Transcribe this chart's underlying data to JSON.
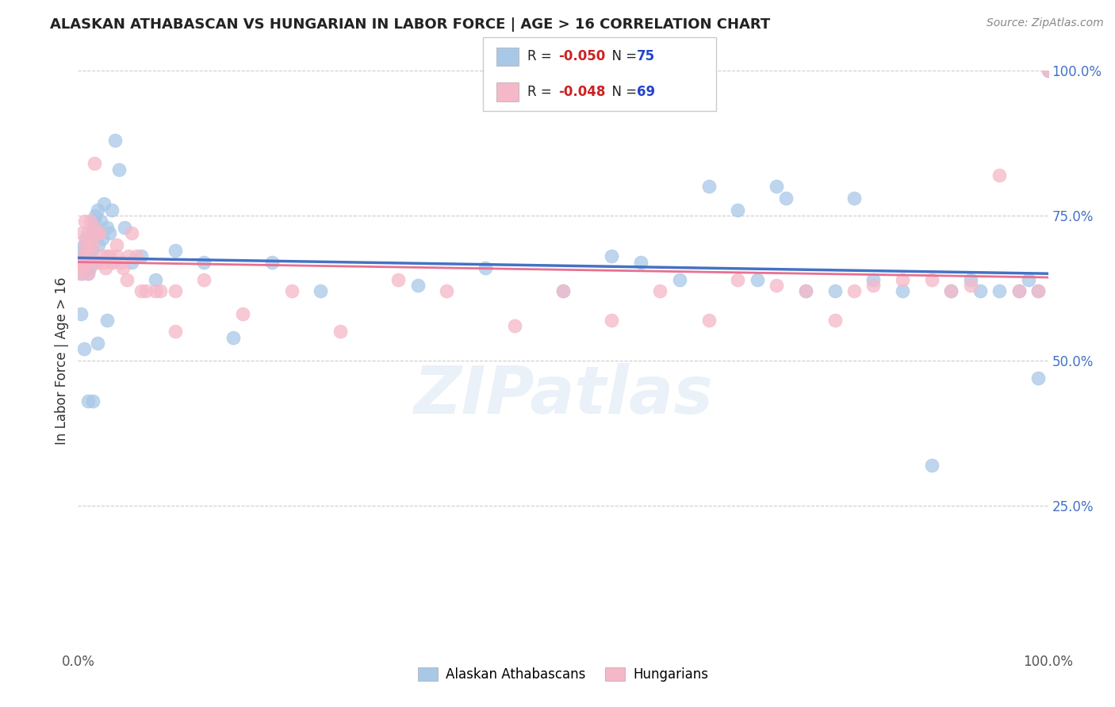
{
  "title": "ALASKAN ATHABASCAN VS HUNGARIAN IN LABOR FORCE | AGE > 16 CORRELATION CHART",
  "source": "Source: ZipAtlas.com",
  "ylabel": "In Labor Force | Age > 16",
  "watermark": "ZIPatlas",
  "blue_R": -0.05,
  "blue_N": 75,
  "pink_R": -0.048,
  "pink_N": 69,
  "blue_color": "#a8c8e8",
  "pink_color": "#f5b8c8",
  "blue_line_color": "#4472c4",
  "pink_line_color": "#e87090",
  "title_color": "#222222",
  "source_color": "#888888",
  "legend_R_color": "#cc2222",
  "legend_N_color": "#2244cc",
  "blue_x": [
    0.002,
    0.003,
    0.004,
    0.004,
    0.005,
    0.005,
    0.006,
    0.006,
    0.007,
    0.007,
    0.008,
    0.009,
    0.01,
    0.01,
    0.011,
    0.012,
    0.013,
    0.014,
    0.015,
    0.016,
    0.017,
    0.018,
    0.019,
    0.02,
    0.021,
    0.022,
    0.023,
    0.025,
    0.027,
    0.03,
    0.032,
    0.035,
    0.038,
    0.042,
    0.048,
    0.055,
    0.065,
    0.08,
    0.1,
    0.13,
    0.16,
    0.2,
    0.25,
    0.35,
    0.42,
    0.5,
    0.55,
    0.58,
    0.62,
    0.65,
    0.68,
    0.7,
    0.72,
    0.73,
    0.75,
    0.78,
    0.8,
    0.82,
    0.85,
    0.88,
    0.9,
    0.92,
    0.93,
    0.95,
    0.97,
    0.98,
    0.99,
    0.99,
    1.0,
    0.003,
    0.006,
    0.01,
    0.015,
    0.02,
    0.03
  ],
  "blue_y": [
    0.66,
    0.67,
    0.65,
    0.68,
    0.66,
    0.69,
    0.67,
    0.7,
    0.66,
    0.68,
    0.71,
    0.67,
    0.65,
    0.69,
    0.68,
    0.66,
    0.71,
    0.69,
    0.72,
    0.67,
    0.74,
    0.75,
    0.72,
    0.76,
    0.7,
    0.72,
    0.74,
    0.71,
    0.77,
    0.73,
    0.72,
    0.76,
    0.88,
    0.83,
    0.73,
    0.67,
    0.68,
    0.64,
    0.69,
    0.67,
    0.54,
    0.67,
    0.62,
    0.63,
    0.66,
    0.62,
    0.68,
    0.67,
    0.64,
    0.8,
    0.76,
    0.64,
    0.8,
    0.78,
    0.62,
    0.62,
    0.78,
    0.64,
    0.62,
    0.32,
    0.62,
    0.64,
    0.62,
    0.62,
    0.62,
    0.64,
    0.62,
    0.47,
    1.0,
    0.58,
    0.52,
    0.43,
    0.43,
    0.53,
    0.57
  ],
  "pink_x": [
    0.002,
    0.003,
    0.004,
    0.005,
    0.006,
    0.007,
    0.008,
    0.009,
    0.01,
    0.011,
    0.012,
    0.013,
    0.015,
    0.016,
    0.018,
    0.02,
    0.022,
    0.025,
    0.028,
    0.032,
    0.036,
    0.04,
    0.045,
    0.05,
    0.055,
    0.065,
    0.08,
    0.1,
    0.13,
    0.17,
    0.22,
    0.27,
    0.33,
    0.38,
    0.45,
    0.5,
    0.55,
    0.6,
    0.65,
    0.68,
    0.72,
    0.75,
    0.78,
    0.8,
    0.82,
    0.85,
    0.88,
    0.9,
    0.92,
    0.95,
    0.97,
    0.99,
    1.0,
    0.004,
    0.007,
    0.01,
    0.013,
    0.017,
    0.021,
    0.026,
    0.03,
    0.035,
    0.04,
    0.046,
    0.052,
    0.06,
    0.07,
    0.085,
    0.1
  ],
  "pink_y": [
    0.65,
    0.67,
    0.66,
    0.68,
    0.66,
    0.7,
    0.68,
    0.67,
    0.65,
    0.7,
    0.71,
    0.68,
    0.7,
    0.73,
    0.67,
    0.67,
    0.72,
    0.68,
    0.66,
    0.68,
    0.67,
    0.7,
    0.67,
    0.64,
    0.72,
    0.62,
    0.62,
    0.55,
    0.64,
    0.58,
    0.62,
    0.55,
    0.64,
    0.62,
    0.56,
    0.62,
    0.57,
    0.62,
    0.57,
    0.64,
    0.63,
    0.62,
    0.57,
    0.62,
    0.63,
    0.64,
    0.64,
    0.62,
    0.63,
    0.82,
    0.62,
    0.62,
    1.0,
    0.72,
    0.74,
    0.72,
    0.74,
    0.84,
    0.72,
    0.67,
    0.68,
    0.67,
    0.68,
    0.66,
    0.68,
    0.68,
    0.62,
    0.62,
    0.62
  ],
  "xlim": [
    0.0,
    1.0
  ],
  "ylim": [
    0.0,
    1.0
  ],
  "ytick_values": [
    0.0,
    0.25,
    0.5,
    0.75,
    1.0
  ],
  "ytick_labels": [
    "0.0%",
    "25.0%",
    "50.0%",
    "75.0%",
    "100.0%"
  ],
  "grid_color": "#cccccc",
  "bg_color": "#ffffff",
  "legend_label_blue": "Alaskan Athabascans",
  "legend_label_pink": "Hungarians"
}
